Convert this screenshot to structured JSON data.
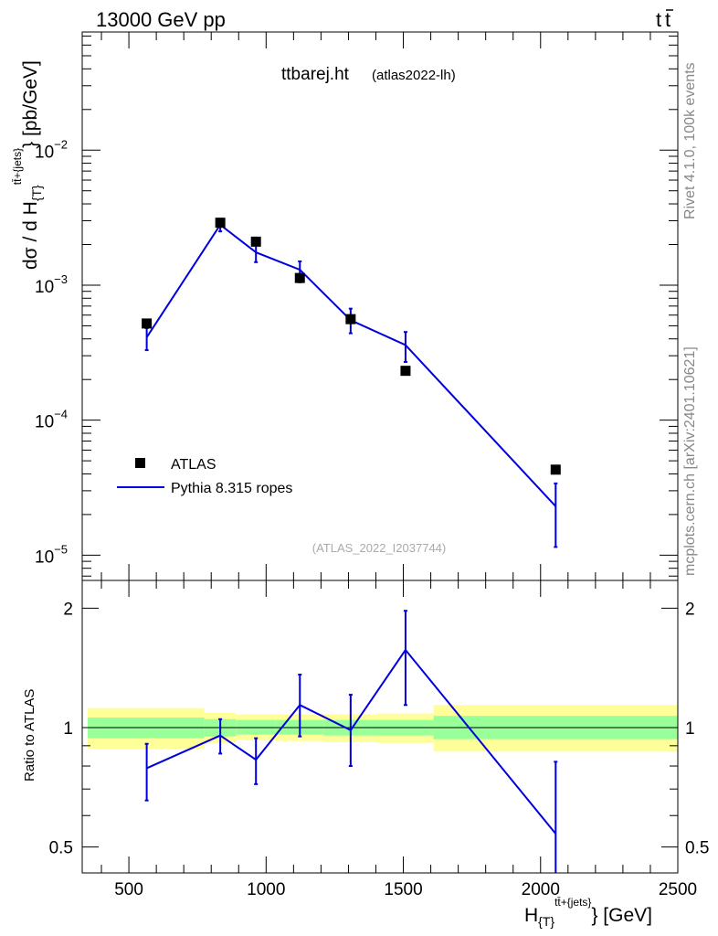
{
  "header": {
    "left": "13000 GeV pp",
    "right_main": "t",
    "right_bar": "t"
  },
  "main_plot": {
    "title_main": "ttbarej.ht",
    "title_sub": "(atlas2022-lh)",
    "analysis_id": "(ATLAS_2022_I2037744)"
  },
  "side_labels": {
    "top": "Rivet 4.1.0,  100k events",
    "bottom": "mcplots.cern.ch [arXiv:2401.10621]"
  },
  "chart_data": [
    {
      "type": "scatter",
      "name": "main",
      "yscale": "log",
      "xlim": [
        330,
        2500
      ],
      "ylim": [
        6.5e-06,
        0.075
      ],
      "xlabel": "H_{T}^{tt̄+jets} [GeV]",
      "ylabel_parts": {
        "a": "dσ / d H",
        "b": "{T}",
        "c": "tt̄+{jets}",
        "d": "} [pb/GeV]"
      },
      "y_ticks": [
        {
          "value": 1e-05,
          "base": "10",
          "exp": "−5"
        },
        {
          "value": 0.0001,
          "base": "10",
          "exp": "−4"
        },
        {
          "value": 0.001,
          "base": "10",
          "exp": "−3"
        },
        {
          "value": 0.01,
          "base": "10",
          "exp": "−2"
        }
      ],
      "data_series": {
        "name": "ATLAS",
        "x": [
          565,
          833,
          963,
          1123,
          1308,
          1508,
          2055
        ],
        "y": [
          0.00052,
          0.0029,
          0.0021,
          0.00113,
          0.00056,
          0.000232,
          4.3e-05
        ]
      },
      "mc_series": {
        "name": "Pythia 8.315 ropes",
        "color": "#0000dd",
        "x": [
          565,
          833,
          963,
          1123,
          1308,
          1508,
          2055
        ],
        "y": [
          0.00041,
          0.0028,
          0.00175,
          0.0013,
          0.00055,
          0.00036,
          2.3e-05
        ],
        "err_lo": [
          0.00033,
          0.0025,
          0.00148,
          0.00105,
          0.00044,
          0.00027,
          1.15e-05
        ],
        "err_hi": [
          0.00048,
          0.0031,
          0.002,
          0.0015,
          0.00067,
          0.00045,
          3.4e-05
        ]
      },
      "legend": [
        "ATLAS",
        "Pythia 8.315 ropes"
      ]
    },
    {
      "type": "line",
      "name": "ratio",
      "yscale": "log",
      "xlim": [
        330,
        2500
      ],
      "ylim": [
        0.43,
        2.35
      ],
      "ylabel": "Ratio to ATLAS",
      "y_ticks": [
        {
          "value": 0.5,
          "label": "0.5"
        },
        {
          "value": 1,
          "label": "1"
        },
        {
          "value": 2,
          "label": "2"
        }
      ],
      "x_ticks": [
        {
          "value": 500,
          "label": "500"
        },
        {
          "value": 1000,
          "label": "1000"
        },
        {
          "value": 1500,
          "label": "1500"
        },
        {
          "value": 2000,
          "label": "2000"
        },
        {
          "value": 2500,
          "label": "2500"
        }
      ],
      "bands": [
        {
          "x0": 350,
          "x1": 775,
          "in_lo": 0.94,
          "in_hi": 1.06,
          "out_lo": 0.885,
          "out_hi": 1.12
        },
        {
          "x0": 775,
          "x1": 890,
          "in_lo": 0.95,
          "in_hi": 1.05,
          "out_lo": 0.915,
          "out_hi": 1.09
        },
        {
          "x0": 890,
          "x1": 1035,
          "in_lo": 0.96,
          "in_hi": 1.045,
          "out_lo": 0.93,
          "out_hi": 1.08
        },
        {
          "x0": 1035,
          "x1": 1210,
          "in_lo": 0.96,
          "in_hi": 1.045,
          "out_lo": 0.925,
          "out_hi": 1.08
        },
        {
          "x0": 1210,
          "x1": 1405,
          "in_lo": 0.955,
          "in_hi": 1.045,
          "out_lo": 0.92,
          "out_hi": 1.08
        },
        {
          "x0": 1405,
          "x1": 1610,
          "in_lo": 0.955,
          "in_hi": 1.045,
          "out_lo": 0.915,
          "out_hi": 1.085
        },
        {
          "x0": 1610,
          "x1": 2500,
          "in_lo": 0.935,
          "in_hi": 1.07,
          "out_lo": 0.87,
          "out_hi": 1.14
        }
      ],
      "band_colors": {
        "outer": "#ffff99",
        "inner": "#99ff99"
      },
      "ratio_series": {
        "name": "Pythia 8.315 ropes",
        "x": [
          565,
          833,
          963,
          1123,
          1308,
          1508,
          2055
        ],
        "y": [
          0.79,
          0.955,
          0.83,
          1.14,
          0.985,
          1.57,
          0.54
        ],
        "err_lo": [
          0.655,
          0.86,
          0.72,
          0.95,
          0.8,
          1.14,
          0.43
        ],
        "err_hi": [
          0.91,
          1.05,
          0.94,
          1.36,
          1.21,
          1.97,
          0.82
        ]
      }
    }
  ]
}
